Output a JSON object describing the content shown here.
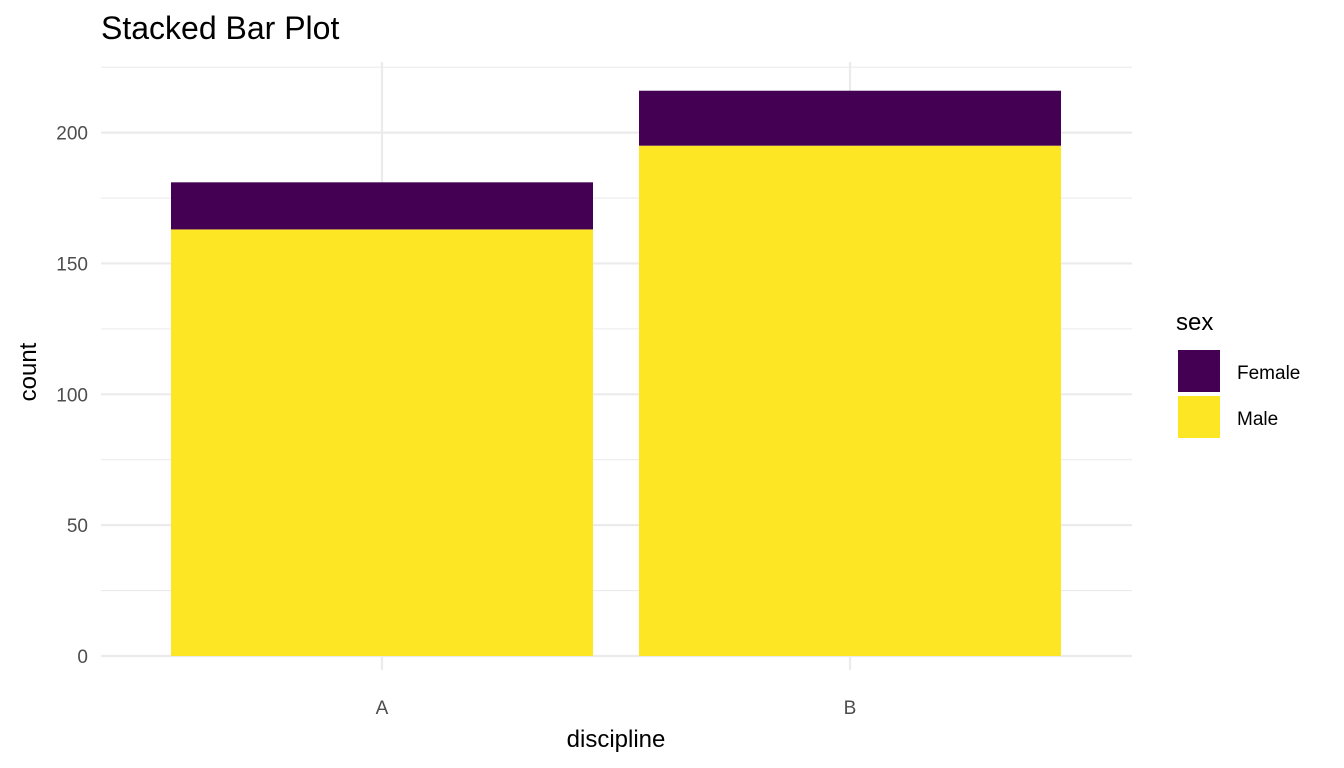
{
  "chart_data": {
    "type": "bar",
    "stacked": true,
    "title": "Stacked Bar Plot",
    "xlabel": "discipline",
    "ylabel": "count",
    "categories": [
      "A",
      "B"
    ],
    "series": [
      {
        "name": "Female",
        "color": "#440154",
        "values": [
          18,
          21
        ]
      },
      {
        "name": "Male",
        "color": "#FDE725",
        "values": [
          163,
          195
        ]
      }
    ],
    "stack_order_top_to_bottom": [
      "Female",
      "Male"
    ],
    "ylim": [
      0,
      226
    ],
    "yticks": [
      0,
      50,
      100,
      150,
      200
    ],
    "ytick_labels": [
      "0",
      "50",
      "100",
      "150",
      "200"
    ],
    "grid": true,
    "legend": {
      "title": "sex",
      "position": "right",
      "entries": [
        "Female",
        "Male"
      ]
    }
  }
}
